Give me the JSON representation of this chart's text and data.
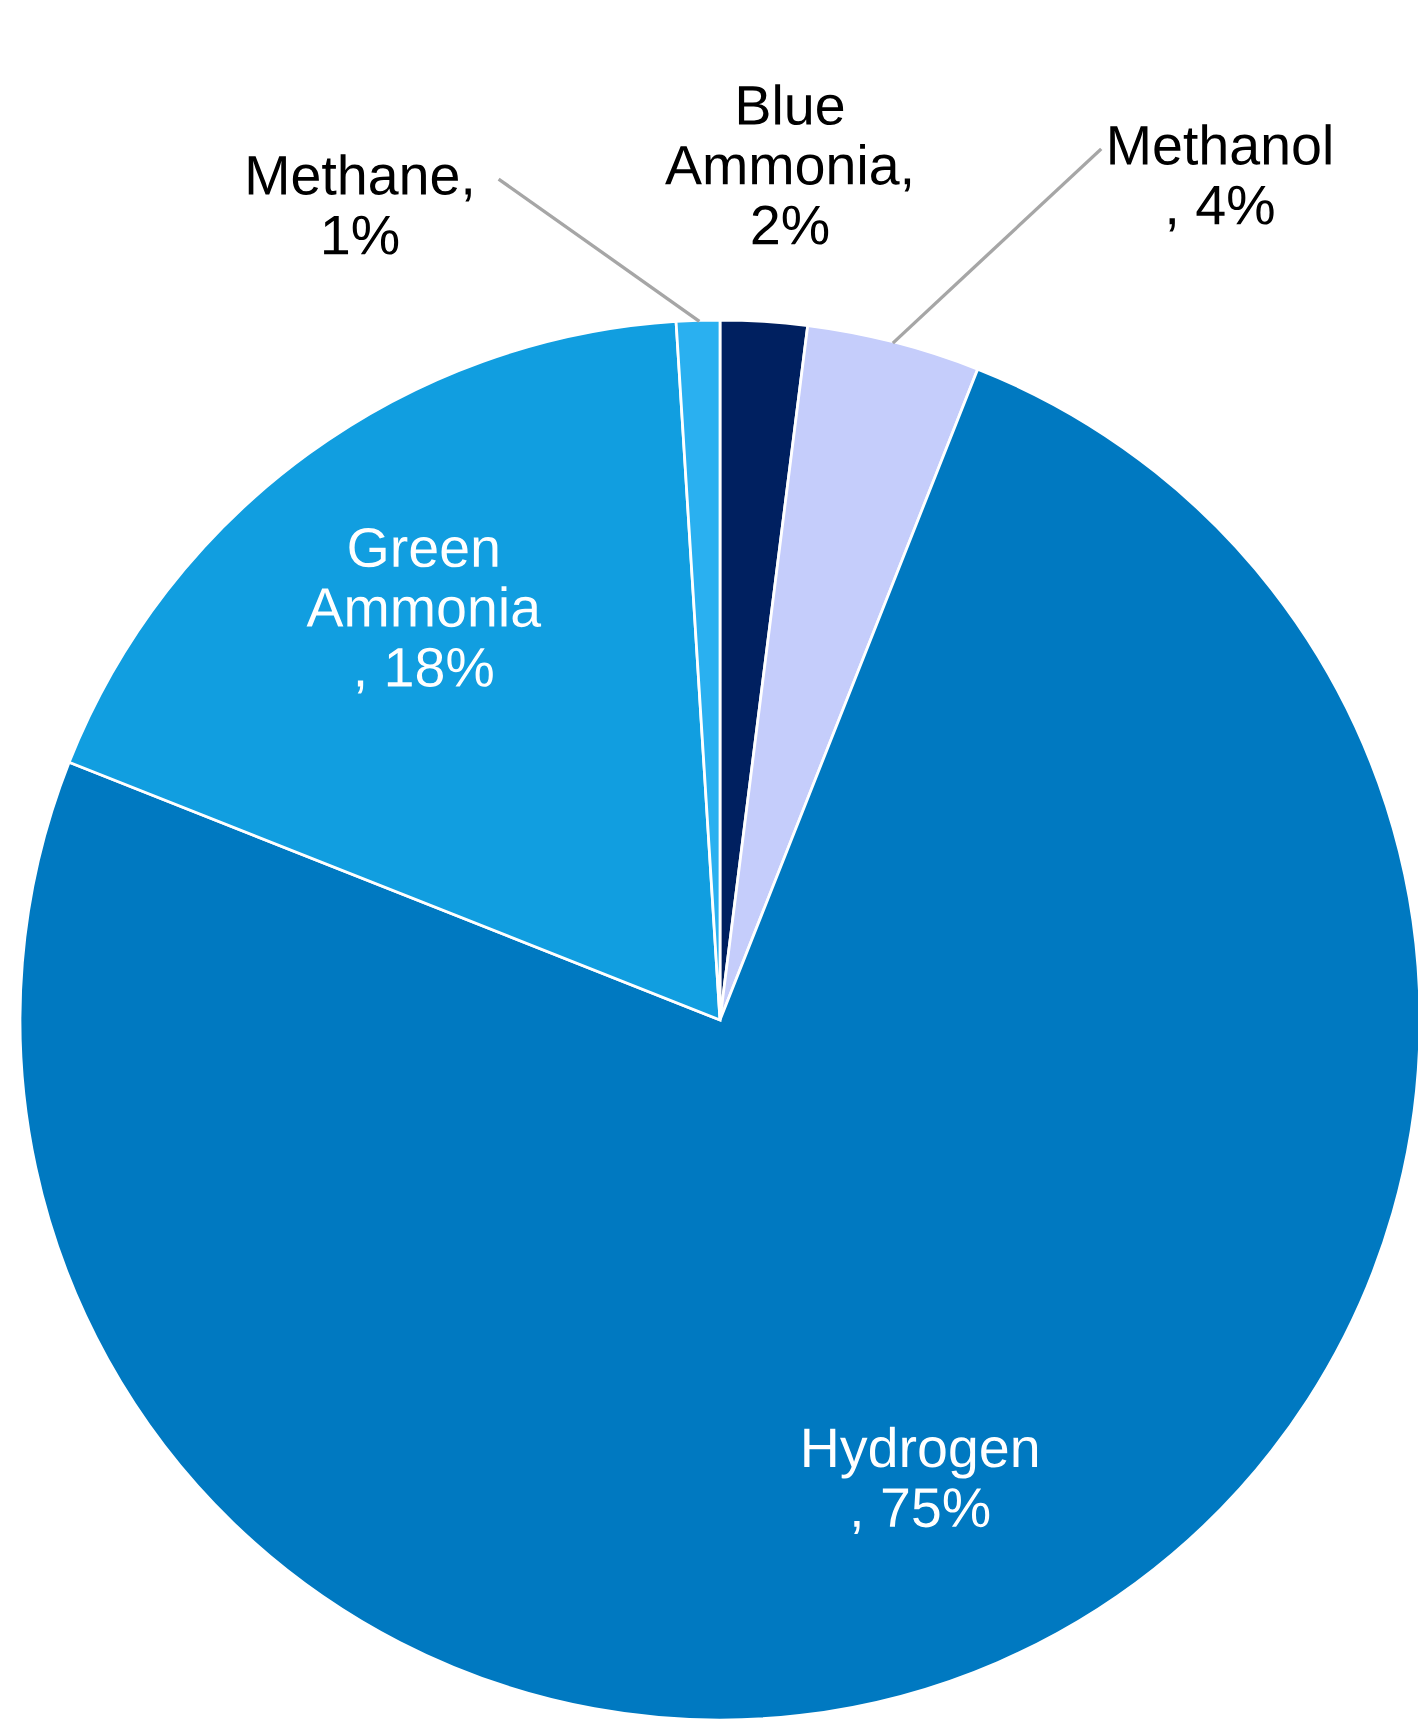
{
  "chart_data": {
    "type": "pie",
    "categories": [
      "Blue\nAmmonia",
      "Methanol",
      "Hydrogen",
      "Green\nAmmonia",
      "Methane"
    ],
    "values": [
      2,
      4,
      75,
      18,
      1
    ],
    "colors": [
      "#002060",
      "#c5cdfb",
      "#0079c1",
      "#119ee0",
      "#2ab0f0"
    ],
    "value_labels": [
      ",\n2%",
      "\n, 4%",
      "\n, 75%",
      "\n, 18%",
      ",\n1%"
    ],
    "legend": false
  }
}
